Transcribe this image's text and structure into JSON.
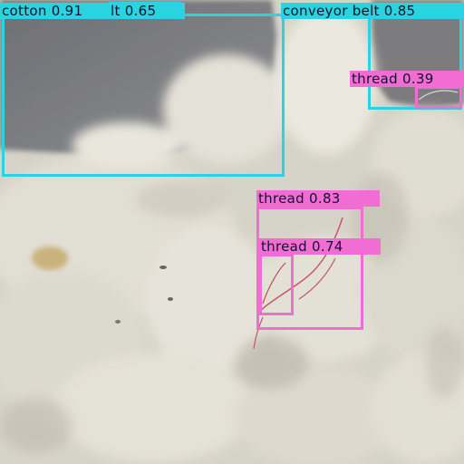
{
  "colors": {
    "conveyor_belt": "#2ad3e0",
    "thread": "#f26dd3",
    "cotton": "#2ad3e0",
    "label_text": "#11142b"
  },
  "detections": [
    {
      "class": "cotton",
      "score": "0.91",
      "label": "cotton 0.91"
    },
    {
      "class": "conveyor belt",
      "score": "0.65",
      "label": "lt 0.65"
    },
    {
      "class": "conveyor belt",
      "score": "0.85",
      "label": "conveyor belt 0.85"
    },
    {
      "class": "thread",
      "score": "0.39",
      "label": "thread 0.39"
    },
    {
      "class": "thread",
      "score": "0.83",
      "label": "thread 0.83"
    },
    {
      "class": "thread",
      "score": "0.74",
      "label": "thread 0.74"
    }
  ]
}
